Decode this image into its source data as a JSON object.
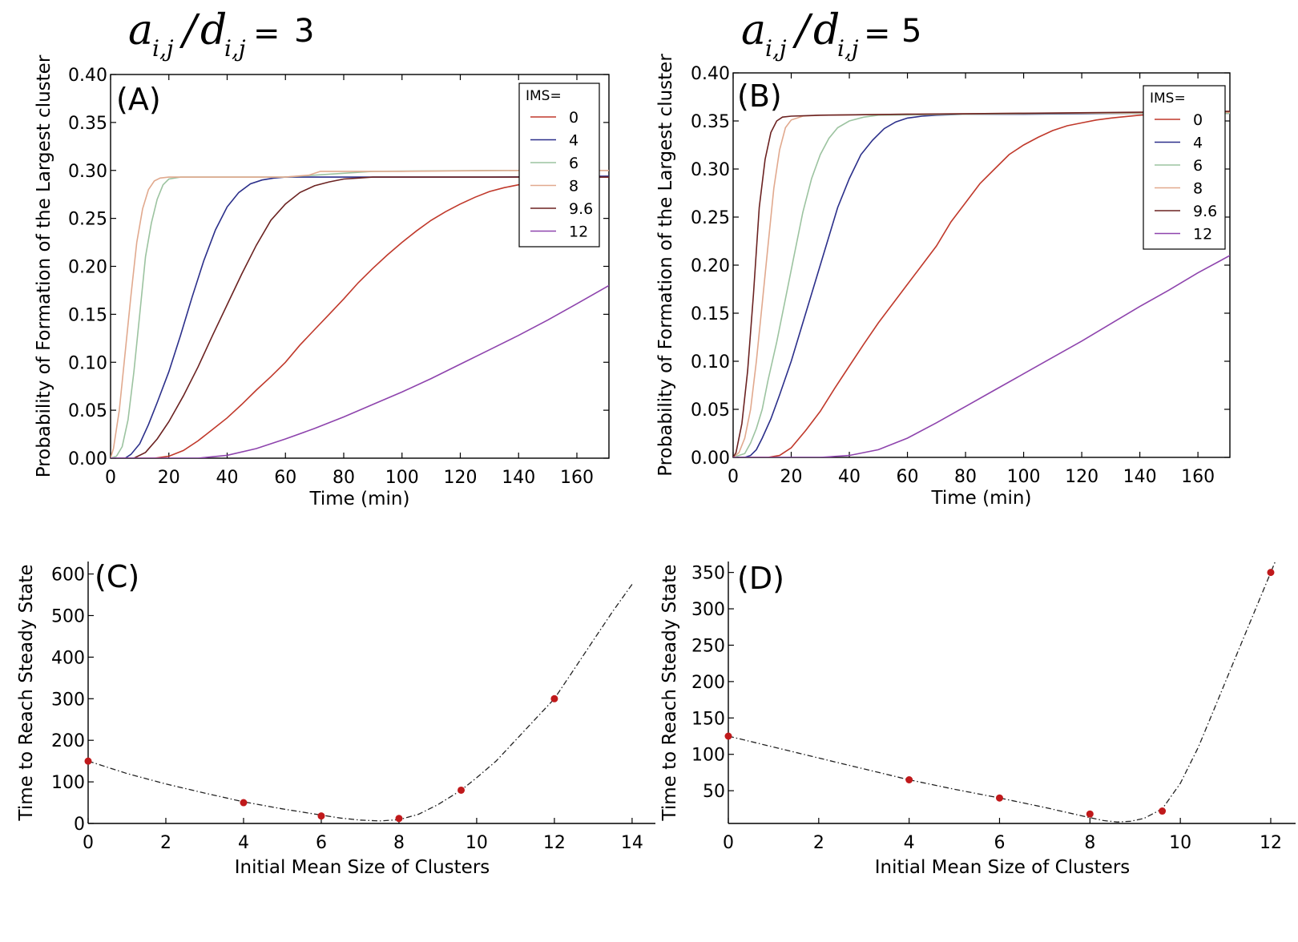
{
  "headers": [
    {
      "a": "a",
      "d": "d",
      "sub": "i,j",
      "slash": "/",
      "eq": "=",
      "value": "3"
    },
    {
      "a": "a",
      "d": "d",
      "sub": "i,j",
      "slash": "/",
      "eq": "=",
      "value": "5"
    }
  ],
  "chart_data": [
    {
      "type": "line",
      "panel_label": "(A)",
      "xlabel": "Time (min)",
      "ylabel": "Probability of Formation of the Largest cluster",
      "xlim": [
        0,
        171
      ],
      "ylim": [
        0,
        0.4
      ],
      "xticks": [
        "0",
        "20",
        "40",
        "60",
        "80",
        "100",
        "120",
        "140",
        "160"
      ],
      "yticks": [
        "0.00",
        "0.05",
        "0.10",
        "0.15",
        "0.20",
        "0.25",
        "0.30",
        "0.35",
        "0.40"
      ],
      "legend_title": "IMS=",
      "legend_position": "top-right",
      "series": [
        {
          "name": "0",
          "color": "#c0392b",
          "x": [
            0,
            15,
            20,
            25,
            30,
            35,
            40,
            45,
            50,
            55,
            60,
            65,
            70,
            75,
            80,
            85,
            90,
            95,
            100,
            105,
            110,
            115,
            120,
            125,
            130,
            135,
            140,
            145,
            150,
            155,
            160,
            165,
            171
          ],
          "y": [
            0,
            0,
            0.002,
            0.008,
            0.018,
            0.03,
            0.042,
            0.056,
            0.071,
            0.085,
            0.1,
            0.118,
            0.134,
            0.15,
            0.166,
            0.183,
            0.198,
            0.212,
            0.225,
            0.237,
            0.248,
            0.257,
            0.265,
            0.272,
            0.278,
            0.282,
            0.285,
            0.288,
            0.29,
            0.291,
            0.292,
            0.293,
            0.293
          ]
        },
        {
          "name": "4",
          "color": "#2b2f8a",
          "x": [
            0,
            5,
            7,
            10,
            13,
            16,
            20,
            24,
            28,
            32,
            36,
            40,
            44,
            48,
            52,
            56,
            60,
            70,
            80,
            100,
            130,
            171
          ],
          "y": [
            0,
            0,
            0.004,
            0.015,
            0.035,
            0.058,
            0.09,
            0.128,
            0.168,
            0.206,
            0.238,
            0.262,
            0.277,
            0.286,
            0.29,
            0.292,
            0.293,
            0.293,
            0.293,
            0.293,
            0.293,
            0.294
          ]
        },
        {
          "name": "6",
          "color": "#9cc3a0",
          "x": [
            0,
            2,
            4,
            6,
            8,
            10,
            12,
            14,
            16,
            18,
            20,
            24,
            30,
            60,
            90,
            130,
            171
          ],
          "y": [
            0,
            0.002,
            0.012,
            0.04,
            0.09,
            0.15,
            0.21,
            0.245,
            0.27,
            0.285,
            0.291,
            0.293,
            0.293,
            0.293,
            0.299,
            0.3,
            0.3
          ]
        },
        {
          "name": "8",
          "color": "#e1a98e",
          "x": [
            0,
            1,
            3,
            5,
            7,
            9,
            11,
            13,
            15,
            17,
            20,
            30,
            60,
            68,
            72,
            100,
            140,
            171
          ],
          "y": [
            0,
            0.01,
            0.05,
            0.11,
            0.17,
            0.225,
            0.26,
            0.28,
            0.289,
            0.292,
            0.293,
            0.293,
            0.293,
            0.295,
            0.299,
            0.299,
            0.3,
            0.3
          ]
        },
        {
          "name": "9.6",
          "color": "#6b2221",
          "x": [
            0,
            8,
            12,
            16,
            20,
            25,
            30,
            35,
            40,
            45,
            50,
            55,
            60,
            65,
            70,
            75,
            80,
            85,
            90,
            95,
            100,
            120,
            171
          ],
          "y": [
            0,
            0,
            0.006,
            0.02,
            0.038,
            0.065,
            0.095,
            0.128,
            0.16,
            0.192,
            0.222,
            0.248,
            0.265,
            0.277,
            0.284,
            0.288,
            0.291,
            0.292,
            0.293,
            0.293,
            0.293,
            0.293,
            0.293
          ]
        },
        {
          "name": "12",
          "color": "#8e44ad",
          "x": [
            0,
            30,
            40,
            50,
            60,
            70,
            80,
            90,
            100,
            110,
            120,
            130,
            140,
            150,
            160,
            171
          ],
          "y": [
            0,
            0,
            0.003,
            0.01,
            0.02,
            0.031,
            0.043,
            0.056,
            0.069,
            0.083,
            0.098,
            0.113,
            0.128,
            0.144,
            0.161,
            0.18
          ]
        }
      ]
    },
    {
      "type": "line",
      "panel_label": "(B)",
      "xlabel": "Time (min)",
      "ylabel": "Probability of Formation of the Largest cluster",
      "xlim": [
        0,
        171
      ],
      "ylim": [
        0,
        0.4
      ],
      "xticks": [
        "0",
        "20",
        "40",
        "60",
        "80",
        "100",
        "120",
        "140",
        "160"
      ],
      "yticks": [
        "0.00",
        "0.05",
        "0.10",
        "0.15",
        "0.20",
        "0.25",
        "0.30",
        "0.35",
        "0.40"
      ],
      "legend_title": "IMS=",
      "legend_position": "top-right",
      "series": [
        {
          "name": "0",
          "color": "#c0392b",
          "x": [
            0,
            12,
            16,
            20,
            25,
            30,
            35,
            40,
            45,
            50,
            55,
            60,
            65,
            70,
            75,
            80,
            85,
            90,
            95,
            100,
            105,
            110,
            115,
            120,
            125,
            130,
            140,
            150,
            160,
            171
          ],
          "y": [
            0,
            0,
            0.002,
            0.01,
            0.028,
            0.048,
            0.072,
            0.095,
            0.118,
            0.14,
            0.16,
            0.18,
            0.2,
            0.22,
            0.245,
            0.265,
            0.285,
            0.3,
            0.315,
            0.325,
            0.333,
            0.34,
            0.345,
            0.348,
            0.351,
            0.353,
            0.356,
            0.358,
            0.359,
            0.36
          ]
        },
        {
          "name": "4",
          "color": "#2b2f8a",
          "x": [
            0,
            4,
            6,
            8,
            10,
            13,
            16,
            20,
            24,
            28,
            32,
            36,
            40,
            44,
            48,
            52,
            56,
            60,
            65,
            70,
            80,
            100,
            140,
            171
          ],
          "y": [
            0,
            0,
            0.002,
            0.008,
            0.02,
            0.04,
            0.065,
            0.1,
            0.14,
            0.18,
            0.22,
            0.26,
            0.29,
            0.315,
            0.33,
            0.342,
            0.349,
            0.353,
            0.355,
            0.356,
            0.357,
            0.357,
            0.358,
            0.358
          ]
        },
        {
          "name": "6",
          "color": "#9cc3a0",
          "x": [
            0,
            4,
            6,
            8,
            10,
            12,
            15,
            18,
            21,
            24,
            27,
            30,
            33,
            36,
            40,
            45,
            50,
            80,
            120,
            171
          ],
          "y": [
            0,
            0.004,
            0.015,
            0.03,
            0.05,
            0.08,
            0.12,
            0.165,
            0.21,
            0.255,
            0.29,
            0.315,
            0.332,
            0.343,
            0.35,
            0.354,
            0.356,
            0.357,
            0.358,
            0.358
          ]
        },
        {
          "name": "8",
          "color": "#e1a98e",
          "x": [
            0,
            2,
            4,
            6,
            8,
            10,
            12,
            14,
            16,
            18,
            20,
            24,
            30,
            60,
            100,
            171
          ],
          "y": [
            0,
            0.005,
            0.02,
            0.05,
            0.1,
            0.16,
            0.22,
            0.28,
            0.32,
            0.343,
            0.351,
            0.355,
            0.356,
            0.357,
            0.358,
            0.359
          ]
        },
        {
          "name": "9.6",
          "color": "#6b2221",
          "x": [
            0,
            1,
            3,
            5,
            7,
            9,
            11,
            13,
            15,
            17,
            20,
            30,
            60,
            100,
            171
          ],
          "y": [
            0,
            0.005,
            0.035,
            0.09,
            0.17,
            0.26,
            0.31,
            0.338,
            0.35,
            0.354,
            0.355,
            0.356,
            0.357,
            0.358,
            0.36
          ]
        },
        {
          "name": "12",
          "color": "#8e44ad",
          "x": [
            0,
            30,
            40,
            50,
            60,
            70,
            80,
            90,
            100,
            110,
            120,
            130,
            140,
            150,
            160,
            171
          ],
          "y": [
            0,
            0,
            0.002,
            0.008,
            0.02,
            0.036,
            0.053,
            0.07,
            0.087,
            0.104,
            0.121,
            0.139,
            0.157,
            0.174,
            0.192,
            0.21
          ]
        }
      ]
    },
    {
      "type": "scatter",
      "panel_label": "(C)",
      "xlabel": "Initial Mean Size of Clusters",
      "ylabel": "Time to Reach Steady State",
      "xlim": [
        0,
        14.6
      ],
      "ylim": [
        0,
        630
      ],
      "xticks": [
        "0",
        "2",
        "4",
        "6",
        "8",
        "10",
        "12",
        "14"
      ],
      "yticks": [
        "0",
        "100",
        "200",
        "300",
        "400",
        "500",
        "600"
      ],
      "points": {
        "x": [
          0,
          4,
          6,
          8,
          9.6,
          12
        ],
        "y": [
          150,
          50,
          18,
          12,
          80,
          300
        ]
      },
      "point_color": "#c0191b",
      "fit": {
        "x": [
          0,
          1,
          2,
          3,
          4,
          5,
          6,
          6.5,
          7,
          7.5,
          8,
          8.5,
          9,
          9.6,
          10,
          10.5,
          11,
          11.5,
          12,
          12.5,
          13,
          13.5,
          14
        ],
        "y": [
          150,
          120,
          95,
          73,
          52,
          35,
          20,
          13,
          8,
          6,
          9,
          22,
          45,
          80,
          110,
          150,
          200,
          250,
          300,
          370,
          440,
          510,
          575
        ]
      }
    },
    {
      "type": "scatter",
      "panel_label": "(D)",
      "xlabel": "Initial Mean Size of Clusters",
      "ylabel": "Time to Reach Steady State",
      "xlim": [
        0,
        12.55
      ],
      "ylim": [
        5,
        365
      ],
      "xticks": [
        "0",
        "2",
        "4",
        "6",
        "8",
        "10",
        "12"
      ],
      "yticks": [
        "50",
        "100",
        "150",
        "200",
        "250",
        "300",
        "350"
      ],
      "points": {
        "x": [
          0,
          4,
          6,
          8,
          9.6,
          12
        ],
        "y": [
          125,
          65,
          40,
          18,
          22,
          350
        ]
      },
      "point_color": "#c0191b",
      "fit": {
        "x": [
          0,
          1,
          2,
          3,
          4,
          5,
          6,
          7,
          7.5,
          8,
          8.3,
          8.6,
          8.9,
          9.2,
          9.6,
          10,
          10.4,
          10.8,
          11.2,
          11.6,
          12,
          12.1
        ],
        "y": [
          125,
          110,
          95,
          80,
          65,
          52,
          40,
          27,
          20,
          13,
          9,
          7,
          8,
          12,
          25,
          60,
          110,
          170,
          230,
          290,
          350,
          365
        ]
      }
    }
  ]
}
